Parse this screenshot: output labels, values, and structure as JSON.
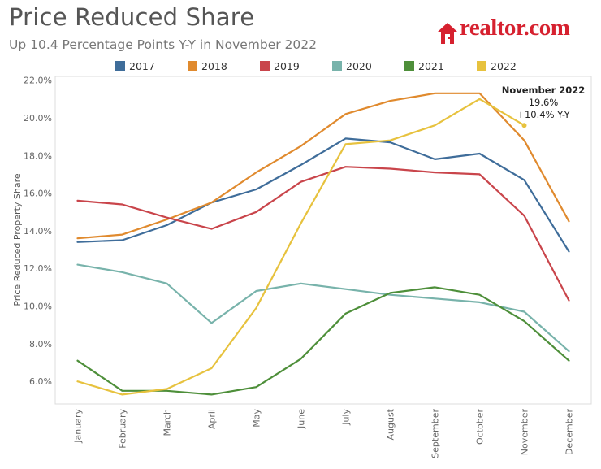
{
  "header": {
    "title": "Price Reduced Share",
    "subtitle": "Up 10.4 Percentage Points Y-Y in November 2022"
  },
  "logo": {
    "text": "realtor.com",
    "brand_color": "#d6212f"
  },
  "annotation": {
    "heading": "November 2022",
    "value": "19.6%",
    "change": "+10.4% Y-Y"
  },
  "chart_data": {
    "type": "line",
    "title": "Price Reduced Share",
    "subtitle": "Up 10.4 Percentage Points Y-Y in November 2022",
    "xlabel": "",
    "ylabel": "Price Reduced Property Share",
    "ylim": [
      4.8,
      22.2
    ],
    "yticks": [
      6,
      8,
      10,
      12,
      14,
      16,
      18,
      20,
      22
    ],
    "ytick_labels": [
      "6.0%",
      "8.0%",
      "10.0%",
      "12.0%",
      "14.0%",
      "16.0%",
      "18.0%",
      "20.0%",
      "22.0%"
    ],
    "legend_position": "top",
    "grid": false,
    "categories": [
      "January",
      "February",
      "March",
      "April",
      "May",
      "June",
      "July",
      "August",
      "September",
      "October",
      "November",
      "December"
    ],
    "series": [
      {
        "name": "2017",
        "color": "#3f6d9a",
        "values": [
          13.4,
          13.5,
          14.3,
          15.5,
          16.2,
          17.5,
          18.9,
          18.7,
          17.8,
          18.1,
          16.7,
          12.9
        ]
      },
      {
        "name": "2018",
        "color": "#e08a2e",
        "values": [
          13.6,
          13.8,
          14.6,
          15.5,
          17.1,
          18.5,
          20.2,
          20.9,
          21.3,
          21.3,
          18.8,
          14.5
        ]
      },
      {
        "name": "2019",
        "color": "#c9454b",
        "values": [
          15.6,
          15.4,
          14.7,
          14.1,
          15.0,
          16.6,
          17.4,
          17.3,
          17.1,
          17.0,
          14.8,
          10.3
        ]
      },
      {
        "name": "2020",
        "color": "#78b3ab",
        "values": [
          12.2,
          11.8,
          11.2,
          9.1,
          10.8,
          11.2,
          10.9,
          10.6,
          10.4,
          10.2,
          9.7,
          7.6
        ]
      },
      {
        "name": "2021",
        "color": "#4e8f3a",
        "values": [
          7.1,
          5.5,
          5.5,
          5.3,
          5.7,
          7.2,
          9.6,
          10.7,
          11.0,
          10.6,
          9.2,
          7.1
        ]
      },
      {
        "name": "2022",
        "color": "#e7c23e",
        "values": [
          6.0,
          5.3,
          5.6,
          6.7,
          9.9,
          14.4,
          18.6,
          18.8,
          19.6,
          21.0,
          19.6,
          null
        ]
      }
    ]
  }
}
